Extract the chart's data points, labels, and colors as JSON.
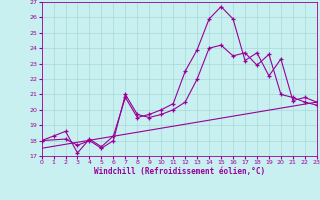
{
  "xlabel": "Windchill (Refroidissement éolien,°C)",
  "bg_color": "#c8f0f0",
  "grid_color": "#a8d8d8",
  "line_color": "#990099",
  "xlim": [
    0,
    23
  ],
  "ylim": [
    17,
    27
  ],
  "xticks": [
    0,
    1,
    2,
    3,
    4,
    5,
    6,
    7,
    8,
    9,
    10,
    11,
    12,
    13,
    14,
    15,
    16,
    17,
    18,
    19,
    20,
    21,
    22,
    23
  ],
  "yticks": [
    17,
    18,
    19,
    20,
    21,
    22,
    23,
    24,
    25,
    26,
    27
  ],
  "line1_x": [
    0,
    1,
    2,
    3,
    4,
    5,
    6,
    7,
    8,
    9,
    10,
    11,
    12,
    13,
    14,
    15,
    16,
    17,
    18,
    19,
    20,
    21,
    22,
    23
  ],
  "line1_y": [
    18.0,
    18.3,
    18.6,
    17.2,
    18.1,
    17.6,
    18.3,
    20.8,
    19.5,
    19.7,
    20.0,
    20.4,
    22.5,
    23.9,
    25.9,
    26.7,
    25.9,
    23.2,
    23.7,
    22.2,
    23.3,
    20.6,
    20.8,
    20.5
  ],
  "line2_x": [
    0,
    2,
    3,
    4,
    5,
    6,
    7,
    8,
    9,
    10,
    11,
    12,
    13,
    14,
    15,
    16,
    17,
    18,
    19,
    20,
    21,
    22,
    23
  ],
  "line2_y": [
    18.0,
    18.1,
    17.7,
    18.0,
    17.5,
    18.0,
    21.0,
    19.7,
    19.5,
    19.7,
    20.0,
    20.5,
    22.0,
    24.0,
    24.2,
    23.5,
    23.7,
    22.9,
    23.6,
    21.0,
    20.8,
    20.5,
    20.3
  ],
  "line3_x": [
    0,
    23
  ],
  "line3_y": [
    17.5,
    20.5
  ]
}
